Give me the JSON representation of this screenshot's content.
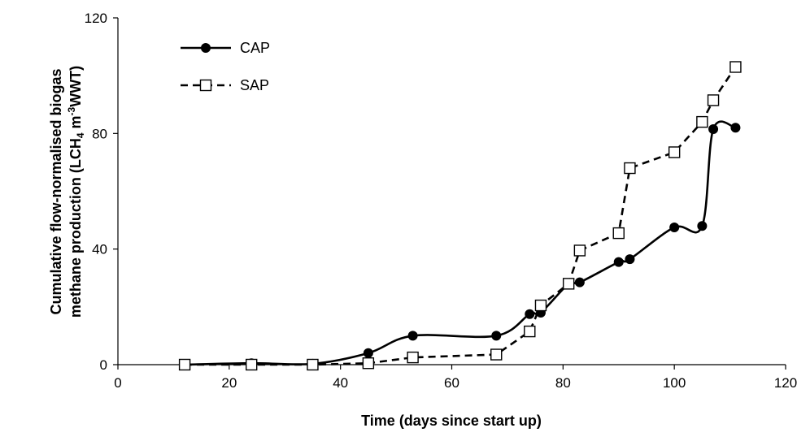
{
  "chart_data": {
    "type": "line",
    "xlabel": "Time (days since start up)",
    "ylabel_line1": "Cumulative flow-normalised biogas",
    "ylabel_line2_prefix": "methane production (LCH",
    "ylabel_sub": "4",
    "ylabel_mid": " m",
    "ylabel_sup": "-3",
    "ylabel_suffix": "WWT)",
    "xlim": [
      0,
      120
    ],
    "ylim": [
      0,
      120
    ],
    "xticks": [
      0,
      20,
      40,
      60,
      80,
      100,
      120
    ],
    "yticks": [
      0,
      40,
      80,
      120
    ],
    "x_tick_labels": [
      "0",
      "20",
      "40",
      "60",
      "80",
      "100",
      "120"
    ],
    "y_tick_labels": [
      "0",
      "40",
      "80",
      "120"
    ],
    "grid": false,
    "legend_position": "top-left",
    "series": [
      {
        "name": "CAP",
        "marker": "filled-circle",
        "line_style": "solid",
        "smooth": true,
        "color": "#000000",
        "points": [
          [
            12,
            0
          ],
          [
            24,
            0.5
          ],
          [
            35,
            0.3
          ],
          [
            45,
            4
          ],
          [
            53,
            10
          ],
          [
            68,
            10
          ],
          [
            74,
            17.5
          ],
          [
            76,
            18
          ],
          [
            81,
            28
          ],
          [
            83,
            28.5
          ],
          [
            90,
            35.5
          ],
          [
            92,
            36.5
          ],
          [
            100,
            47.5
          ],
          [
            105,
            48
          ],
          [
            107,
            81.5
          ],
          [
            111,
            82
          ]
        ]
      },
      {
        "name": "SAP",
        "marker": "open-square",
        "line_style": "dashed",
        "smooth": false,
        "color": "#000000",
        "points": [
          [
            12,
            0
          ],
          [
            24,
            0
          ],
          [
            35,
            0
          ],
          [
            45,
            0.5
          ],
          [
            53,
            2.5
          ],
          [
            68,
            3.5
          ],
          [
            74,
            11.5
          ],
          [
            76,
            20.5
          ],
          [
            81,
            28
          ],
          [
            83,
            39.5
          ],
          [
            90,
            45.5
          ],
          [
            92,
            68
          ],
          [
            100,
            73.5
          ],
          [
            105,
            84
          ],
          [
            107,
            91.5
          ],
          [
            111,
            103
          ]
        ]
      }
    ]
  }
}
